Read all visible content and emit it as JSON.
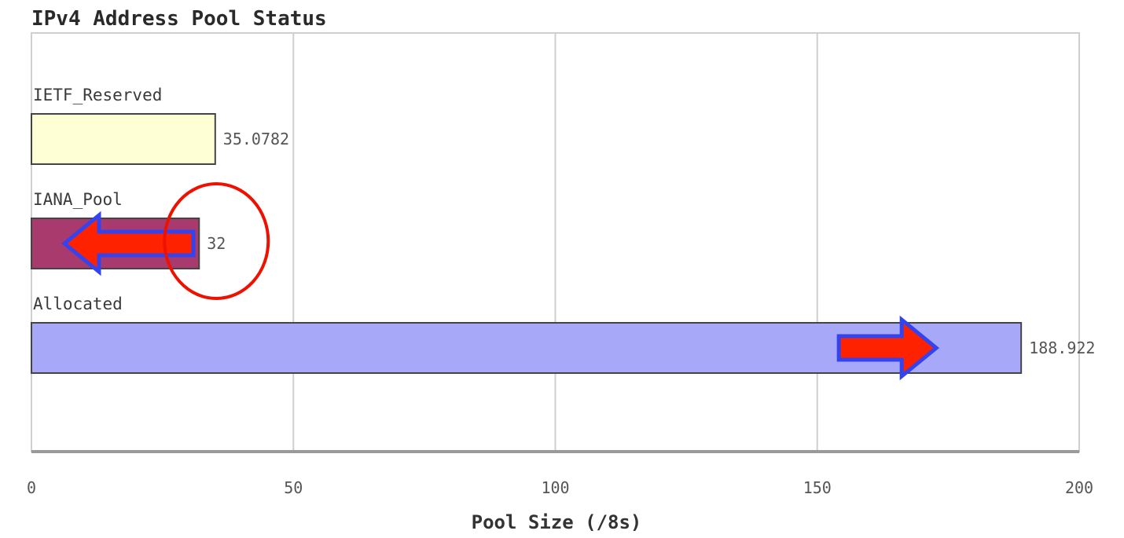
{
  "chart_data": {
    "type": "bar",
    "orientation": "horizontal",
    "title": "IPv4 Address Pool Status",
    "xlabel": "Pool Size (/8s)",
    "ylabel": "",
    "xlim": [
      0,
      200
    ],
    "x_ticks": [
      0,
      50,
      100,
      150,
      200
    ],
    "grid": true,
    "categories": [
      "IETF_Reserved",
      "IANA_Pool",
      "Allocated"
    ],
    "values": [
      35.0782,
      32,
      188.922
    ],
    "value_labels": [
      "35.0782",
      "32",
      "188.922"
    ],
    "colors": [
      "#ffffd6",
      "#a83a6e",
      "#a8a8f8"
    ],
    "annotations": [
      {
        "type": "arrow",
        "category": "IANA_Pool",
        "direction": "left",
        "fill": "#ff2200",
        "outline": "#3344ee"
      },
      {
        "type": "circle",
        "category": "IANA_Pool",
        "target": "value_label",
        "stroke": "#ee1100"
      },
      {
        "type": "arrow",
        "category": "Allocated",
        "direction": "right",
        "fill": "#ff2200",
        "outline": "#3344ee"
      }
    ]
  }
}
